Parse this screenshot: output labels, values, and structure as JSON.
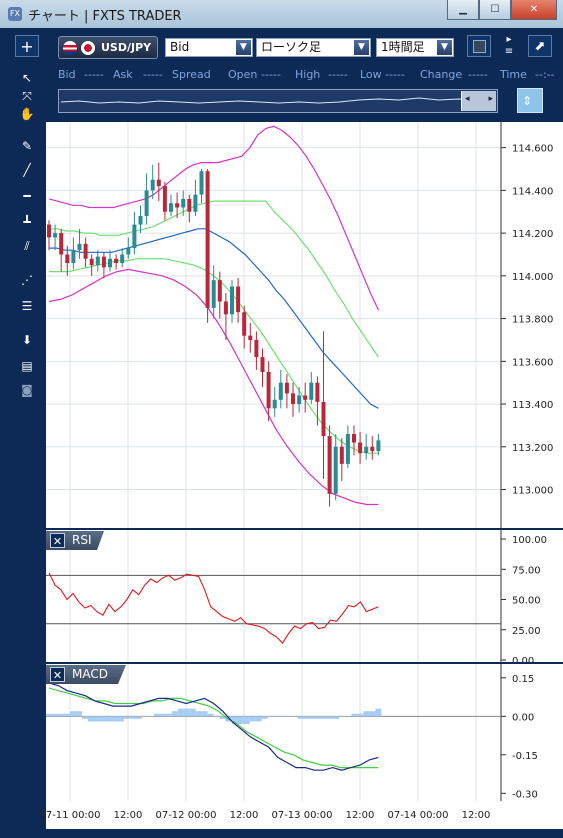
{
  "window": {
    "title": "チャート | FXTS TRADER",
    "app_icon": "FX",
    "minimize_glyph": "▁",
    "maximize_glyph": "☐",
    "close_glyph": "✕"
  },
  "toolbar": {
    "symbol": "USD/JPY",
    "price_type": "Bid",
    "chart_type": "ローソク足",
    "timeframe": "1時間足",
    "add_glyph": "+",
    "expand_glyph": "⬈"
  },
  "quotes": {
    "fields": [
      {
        "label": "Bid",
        "value": "-----"
      },
      {
        "label": "Ask",
        "value": "-----"
      },
      {
        "label": "Spread",
        "value": ""
      },
      {
        "label": "Open",
        "value": "-----"
      },
      {
        "label": "High",
        "value": "-----"
      },
      {
        "label": "Low",
        "value": "-----"
      },
      {
        "label": "Change",
        "value": "-----"
      },
      {
        "label": "Time",
        "value": "--:--"
      }
    ]
  },
  "panels": {
    "rsi": {
      "name": "RSI",
      "close_glyph": "✕"
    },
    "macd": {
      "name": "MACD",
      "close_glyph": "✕"
    }
  },
  "colors": {
    "bull_candle": "#2b8a92",
    "bear_candle": "#b8283a",
    "bollinger_outer": "#d633c0",
    "bollinger_inner": "#6fe06f",
    "moving_average": "#2366c5",
    "rsi_line": "#e01818",
    "macd_line": "#1a2a88",
    "signal_line": "#44cc44",
    "histogram": "#a8cdf2",
    "grid": "#dde3ee"
  },
  "chart_data": [
    {
      "type": "candlestick",
      "title": "",
      "ylim": [
        112.82,
        114.72
      ],
      "y_ticks": [
        "114.600",
        "114.400",
        "114.200",
        "114.000",
        "113.800",
        "113.600",
        "113.400",
        "113.200",
        "113.000"
      ],
      "x_ticks": [
        "07-11 00:00",
        "12:00",
        "07-12 00:00",
        "12:00",
        "07-13 00:00",
        "12:00",
        "07-14 00:00",
        "12:00"
      ],
      "grid": true,
      "candles": [
        [
          114.24,
          114.18,
          114.26,
          114.12
        ],
        [
          114.18,
          114.2,
          114.24,
          114.12
        ],
        [
          114.2,
          114.1,
          114.22,
          114.02
        ],
        [
          114.1,
          114.06,
          114.14,
          114.0
        ],
        [
          114.06,
          114.12,
          114.18,
          114.03
        ],
        [
          114.12,
          114.15,
          114.22,
          114.08
        ],
        [
          114.15,
          114.08,
          114.18,
          114.04
        ],
        [
          114.08,
          114.05,
          114.1,
          114.0
        ],
        [
          114.05,
          114.09,
          114.12,
          114.02
        ],
        [
          114.09,
          114.04,
          114.11,
          113.99
        ],
        [
          114.04,
          114.08,
          114.12,
          114.02
        ],
        [
          114.08,
          114.06,
          114.1,
          114.03
        ],
        [
          114.06,
          114.1,
          114.13,
          114.04
        ],
        [
          114.1,
          114.13,
          114.18,
          114.08
        ],
        [
          114.13,
          114.24,
          114.3,
          114.1
        ],
        [
          114.24,
          114.28,
          114.33,
          114.2
        ],
        [
          114.28,
          114.4,
          114.48,
          114.24
        ],
        [
          114.4,
          114.45,
          114.52,
          114.36
        ],
        [
          114.45,
          114.42,
          114.53,
          114.35
        ],
        [
          114.42,
          114.3,
          114.44,
          114.26
        ],
        [
          114.3,
          114.34,
          114.38,
          114.28
        ],
        [
          114.34,
          114.32,
          114.39,
          114.27
        ],
        [
          114.32,
          114.36,
          114.4,
          114.28
        ],
        [
          114.36,
          114.3,
          114.38,
          114.25
        ],
        [
          114.3,
          114.38,
          114.45,
          114.28
        ],
        [
          114.38,
          114.49,
          114.5,
          114.34
        ],
        [
          114.49,
          113.85,
          114.5,
          113.78
        ],
        [
          113.85,
          113.98,
          114.05,
          113.8
        ],
        [
          113.98,
          113.88,
          114.02,
          113.8
        ],
        [
          113.88,
          113.82,
          113.92,
          113.7
        ],
        [
          113.82,
          113.95,
          113.98,
          113.78
        ],
        [
          113.95,
          113.83,
          113.99,
          113.78
        ],
        [
          113.83,
          113.72,
          113.86,
          113.66
        ],
        [
          113.72,
          113.7,
          113.78,
          113.64
        ],
        [
          113.7,
          113.62,
          113.74,
          113.56
        ],
        [
          113.62,
          113.55,
          113.66,
          113.48
        ],
        [
          113.55,
          113.38,
          113.6,
          113.32
        ],
        [
          113.38,
          113.42,
          113.48,
          113.34
        ],
        [
          113.42,
          113.5,
          113.56,
          113.38
        ],
        [
          113.5,
          113.45,
          113.54,
          113.38
        ],
        [
          113.45,
          113.4,
          113.5,
          113.34
        ],
        [
          113.4,
          113.44,
          113.48,
          113.36
        ],
        [
          113.44,
          113.42,
          113.5,
          113.36
        ],
        [
          113.42,
          113.5,
          113.55,
          113.4
        ],
        [
          113.5,
          113.41,
          113.53,
          113.3
        ],
        [
          113.41,
          113.25,
          113.74,
          113.05
        ],
        [
          113.25,
          112.98,
          113.3,
          112.92
        ],
        [
          112.98,
          113.2,
          113.26,
          112.95
        ],
        [
          113.2,
          113.12,
          113.24,
          113.04
        ],
        [
          113.12,
          113.26,
          113.3,
          113.1
        ],
        [
          113.26,
          113.22,
          113.3,
          113.16
        ],
        [
          113.22,
          113.17,
          113.27,
          113.12
        ],
        [
          113.17,
          113.2,
          113.26,
          113.14
        ],
        [
          113.2,
          113.18,
          113.25,
          113.14
        ],
        [
          113.18,
          113.23,
          113.26,
          113.16
        ]
      ],
      "series": [
        {
          "name": "",
          "role": "bollinger_upper",
          "values": [
            114.36,
            114.35,
            114.34,
            114.33,
            114.33,
            114.32,
            114.32,
            114.32,
            114.32,
            114.33,
            114.34,
            114.35,
            114.36,
            114.38,
            114.41,
            114.44,
            114.47,
            114.5,
            114.52,
            114.53,
            114.53,
            114.53,
            114.54,
            114.55,
            114.56,
            114.6,
            114.66,
            114.69,
            114.7,
            114.68,
            114.65,
            114.61,
            114.56,
            114.5,
            114.43,
            114.36,
            114.28,
            114.19,
            114.1,
            114.01,
            113.92,
            113.84
          ]
        },
        {
          "name": "",
          "role": "bollinger_inner_upper",
          "values": [
            114.22,
            114.22,
            114.21,
            114.21,
            114.2,
            114.2,
            114.19,
            114.19,
            114.19,
            114.2,
            114.21,
            114.22,
            114.23,
            114.25,
            114.27,
            114.29,
            114.31,
            114.33,
            114.34,
            114.35,
            114.35,
            114.35,
            114.35,
            114.35,
            114.35,
            114.35,
            114.3,
            114.26,
            114.22,
            114.17,
            114.12,
            114.06,
            114.0,
            113.93,
            113.87,
            113.8,
            113.74,
            113.68,
            113.62
          ]
        },
        {
          "name": "",
          "role": "moving_average",
          "values": [
            114.13,
            114.13,
            114.12,
            114.12,
            114.11,
            114.11,
            114.11,
            114.11,
            114.11,
            114.12,
            114.13,
            114.14,
            114.15,
            114.16,
            114.17,
            114.18,
            114.19,
            114.2,
            114.21,
            114.22,
            114.22,
            114.2,
            114.18,
            114.16,
            114.13,
            114.1,
            114.06,
            114.02,
            113.98,
            113.93,
            113.89,
            113.84,
            113.79,
            113.74,
            113.69,
            113.64,
            113.6,
            113.56,
            113.52,
            113.48,
            113.44,
            113.4,
            113.38
          ]
        },
        {
          "name": "",
          "role": "bollinger_inner_lower",
          "values": [
            114.02,
            114.02,
            114.02,
            114.03,
            114.04,
            114.05,
            114.06,
            114.07,
            114.07,
            114.08,
            114.08,
            114.08,
            114.08,
            114.07,
            114.06,
            114.05,
            114.03,
            114.0,
            113.96,
            113.91,
            113.85,
            113.79,
            113.73,
            113.66,
            113.59,
            113.52,
            113.45,
            113.38,
            113.32,
            113.27,
            113.23,
            113.2,
            113.18,
            113.17,
            113.17
          ]
        },
        {
          "name": "",
          "role": "bollinger_lower",
          "values": [
            113.88,
            113.89,
            113.91,
            113.94,
            113.97,
            114.0,
            114.02,
            114.03,
            114.02,
            114.01,
            114.0,
            113.98,
            113.95,
            113.91,
            113.85,
            113.77,
            113.68,
            113.58,
            113.48,
            113.38,
            113.28,
            113.2,
            113.13,
            113.07,
            113.02,
            112.98,
            112.96,
            112.94,
            112.93,
            112.93
          ]
        }
      ]
    },
    {
      "type": "line",
      "title": "RSI",
      "ylim": [
        0,
        105
      ],
      "y_ticks": [
        "100.00",
        "75.00",
        "50.00",
        "25.00",
        "0.00"
      ],
      "reference_lines": [
        70,
        30
      ],
      "series": [
        {
          "name": "RSI",
          "values": [
            72,
            62,
            58,
            50,
            55,
            48,
            43,
            45,
            40,
            37,
            46,
            40,
            44,
            50,
            58,
            54,
            62,
            67,
            64,
            68,
            70,
            66,
            68,
            71,
            70,
            69,
            58,
            44,
            40,
            36,
            34,
            32,
            35,
            30,
            29,
            28,
            26,
            22,
            19,
            14,
            22,
            28,
            26,
            30,
            31,
            26,
            27,
            33,
            32,
            38,
            45,
            44,
            48,
            40,
            42,
            44
          ]
        }
      ]
    },
    {
      "type": "line",
      "title": "MACD",
      "ylim": [
        -0.33,
        0.2
      ],
      "y_ticks": [
        "0.15",
        "0.00",
        "-0.15",
        "-0.30"
      ],
      "series": [
        {
          "name": "MACD",
          "values": [
            0.13,
            0.12,
            0.1,
            0.09,
            0.08,
            0.06,
            0.05,
            0.04,
            0.04,
            0.04,
            0.05,
            0.06,
            0.07,
            0.07,
            0.06,
            0.05,
            0.06,
            0.07,
            0.05,
            0.02,
            -0.02,
            -0.05,
            -0.08,
            -0.1,
            -0.12,
            -0.16,
            -0.18,
            -0.2,
            -0.2,
            -0.21,
            -0.21,
            -0.2,
            -0.21,
            -0.2,
            -0.19,
            -0.17,
            -0.16
          ]
        },
        {
          "name": "Signal",
          "values": [
            0.11,
            0.1,
            0.09,
            0.08,
            0.07,
            0.06,
            0.06,
            0.05,
            0.05,
            0.05,
            0.05,
            0.06,
            0.06,
            0.07,
            0.07,
            0.06,
            0.05,
            0.04,
            0.02,
            -0.01,
            -0.03,
            -0.06,
            -0.08,
            -0.1,
            -0.12,
            -0.14,
            -0.15,
            -0.17,
            -0.18,
            -0.19,
            -0.19,
            -0.2,
            -0.2,
            -0.2,
            -0.2,
            -0.2
          ]
        },
        {
          "name": "Histogram",
          "values": [
            0.01,
            0.01,
            0.01,
            0.01,
            0.02,
            0.02,
            -0.01,
            -0.02,
            -0.02,
            -0.02,
            -0.02,
            -0.02,
            -0.02,
            -0.01,
            -0.01,
            -0.01,
            0,
            0,
            0.01,
            0.01,
            0.01,
            0.02,
            0.03,
            0.03,
            0.03,
            0.02,
            0.02,
            0.01,
            0,
            -0.01,
            -0.02,
            -0.03,
            -0.03,
            -0.03,
            -0.02,
            -0.02,
            -0.01,
            0,
            0,
            0,
            0,
            0,
            -0.01,
            -0.01,
            -0.01,
            -0.01,
            -0.01,
            -0.01,
            -0.01,
            0,
            0,
            0.01,
            0.01,
            0.02,
            0.02,
            0.03
          ]
        }
      ]
    }
  ]
}
